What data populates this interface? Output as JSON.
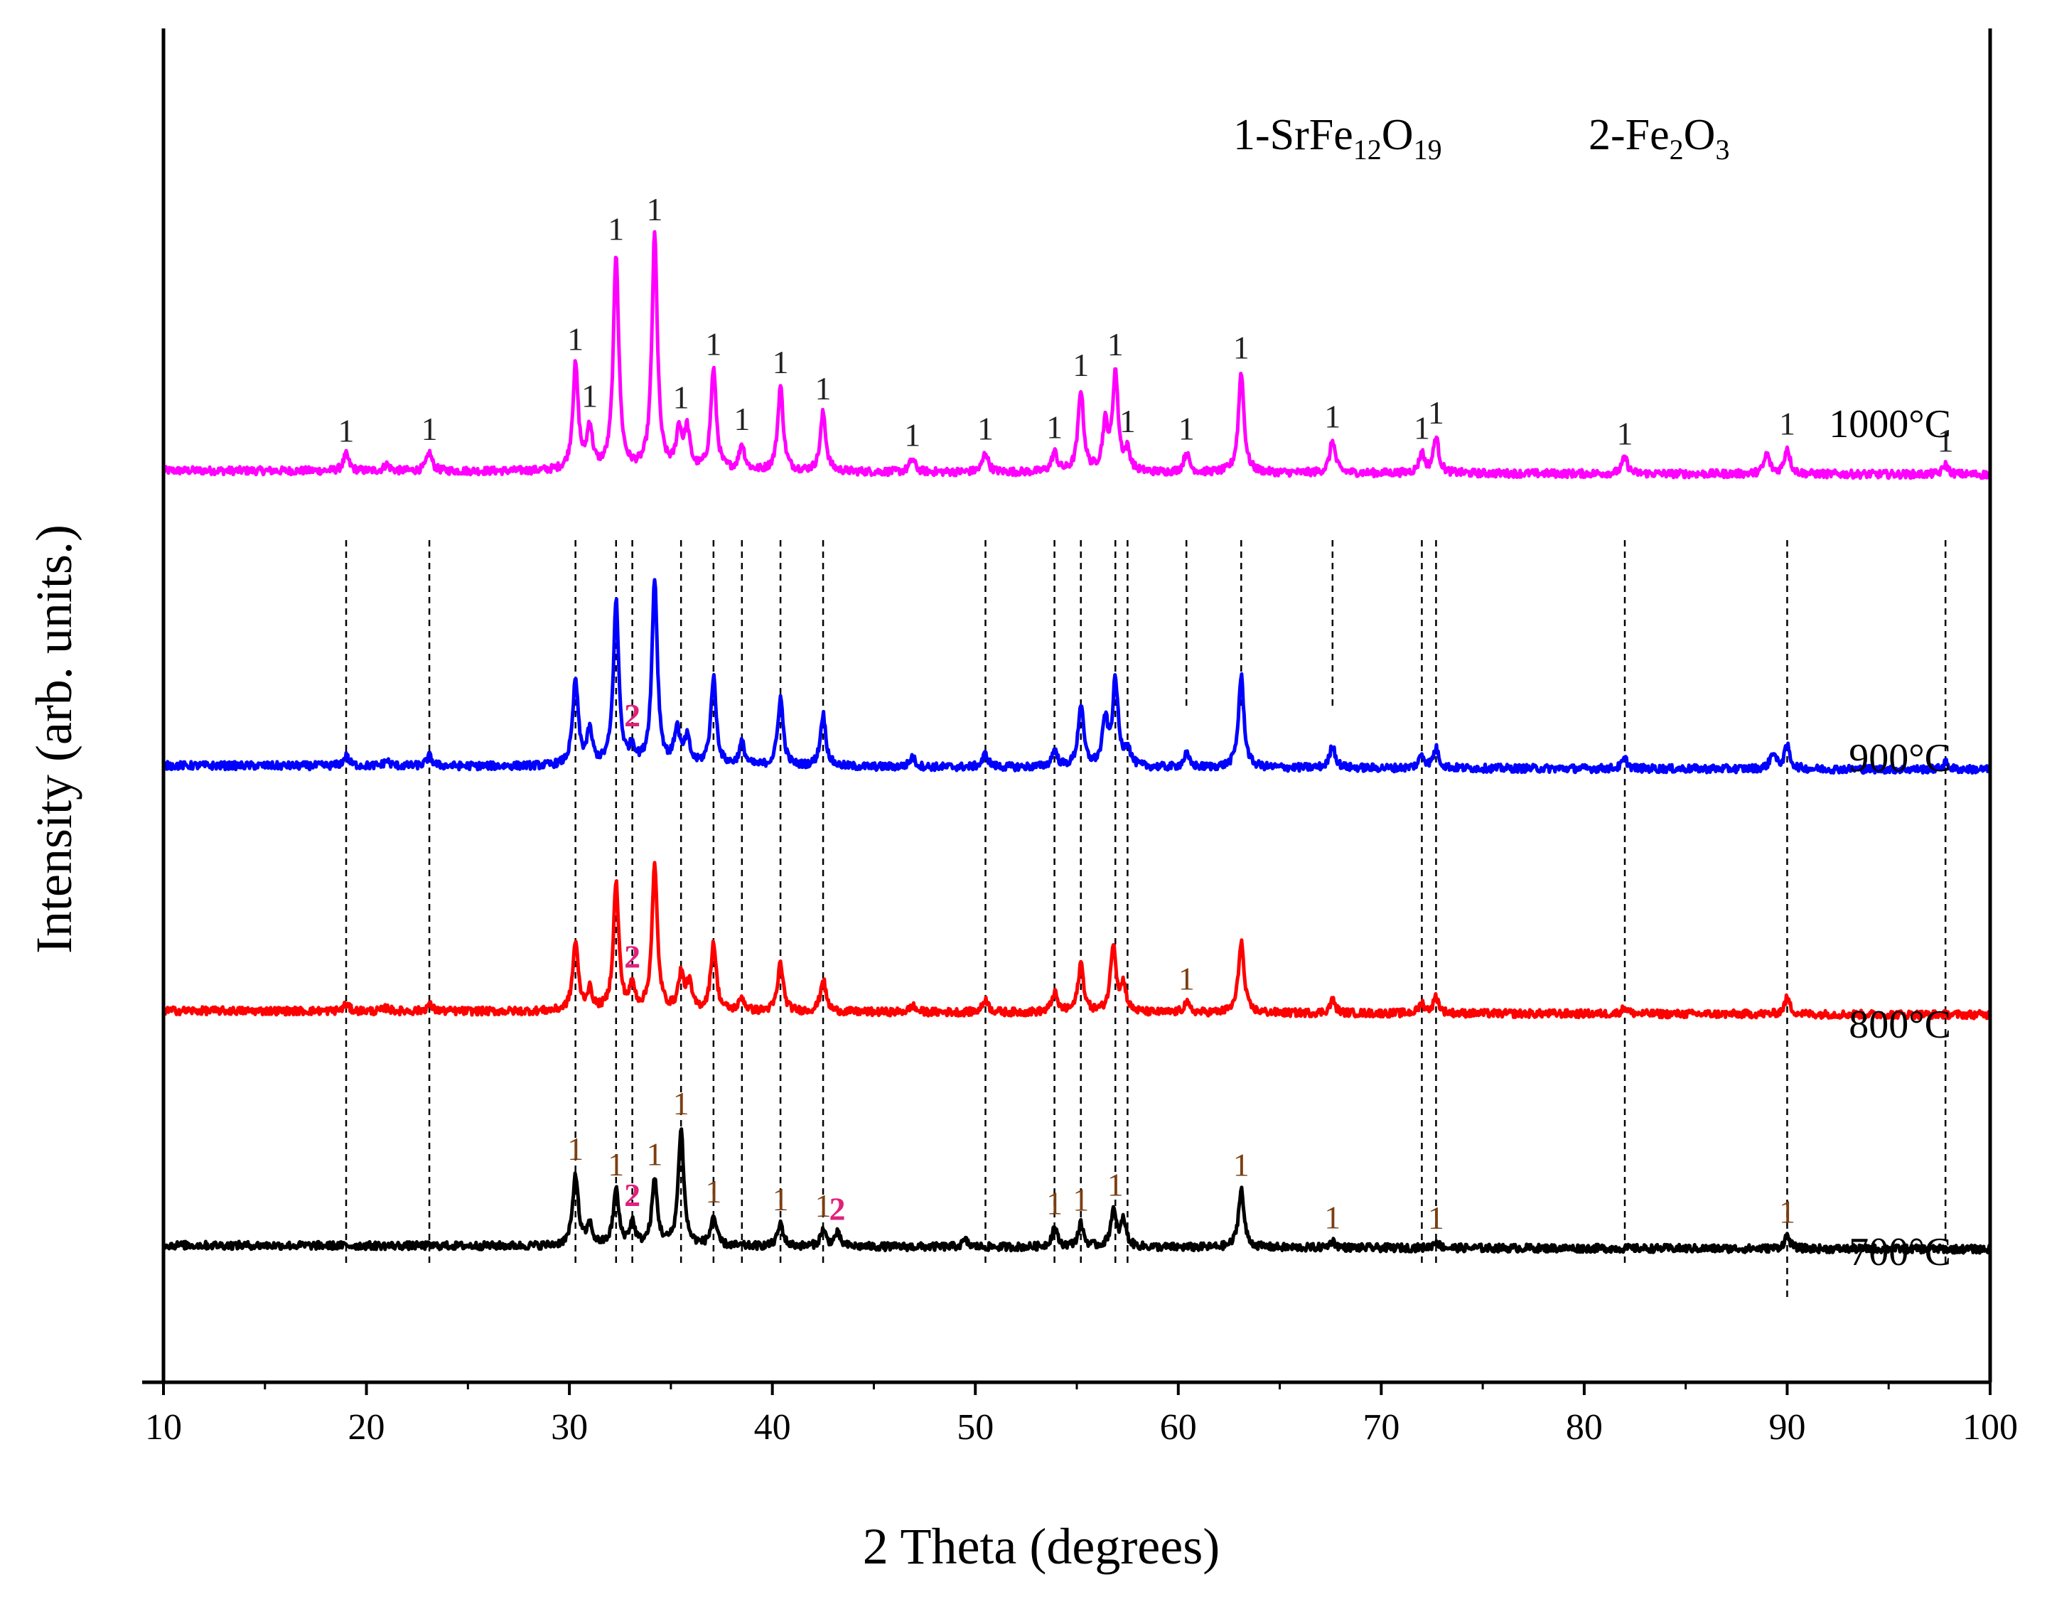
{
  "chart_data": {
    "type": "line",
    "title": "",
    "xlabel": "2 Theta (degrees)",
    "ylabel": "Intensity (arb. units.)",
    "xlim": [
      10,
      100
    ],
    "xticks": [
      10,
      20,
      30,
      40,
      50,
      60,
      70,
      80,
      90,
      100
    ],
    "yticks_shown": false,
    "legend": {
      "position": "top-right",
      "entries": [
        {
          "label": "1-SrFe",
          "sub1": "12",
          "mid": "O",
          "sub2": "19"
        },
        {
          "label": "2-Fe",
          "sub1": "2",
          "mid": "O",
          "sub2": "3"
        }
      ]
    },
    "series": [
      {
        "name": "1000°C",
        "color": "#ff00ff",
        "baseline": 0.9,
        "slope": -0.06,
        "noise": 0.06,
        "peaks": [
          [
            19.0,
            0.25
          ],
          [
            21,
            0.1
          ],
          [
            23.1,
            0.28
          ],
          [
            30.3,
            1.6
          ],
          [
            31.0,
            0.65
          ],
          [
            32.3,
            3.3
          ],
          [
            34.2,
            3.6
          ],
          [
            35.4,
            0.6
          ],
          [
            35.8,
            0.6
          ],
          [
            37.1,
            1.55
          ],
          [
            38.5,
            0.4
          ],
          [
            40.4,
            1.3
          ],
          [
            42.5,
            0.9
          ],
          [
            46.9,
            0.2
          ],
          [
            50.5,
            0.3
          ],
          [
            53.9,
            0.3
          ],
          [
            55.2,
            1.25
          ],
          [
            56.4,
            0.7
          ],
          [
            56.9,
            1.5
          ],
          [
            57.5,
            0.3
          ],
          [
            60.4,
            0.3
          ],
          [
            63.1,
            1.55
          ],
          [
            67.6,
            0.5
          ],
          [
            72.0,
            0.3
          ],
          [
            72.7,
            0.55
          ],
          [
            82.0,
            0.25
          ],
          [
            89.0,
            0.3
          ],
          [
            90.0,
            0.4
          ],
          [
            97.8,
            0.15
          ]
        ]
      },
      {
        "name": "900°C",
        "color": "#0000ff",
        "baseline": 0.9,
        "slope": -0.06,
        "noise": 0.06,
        "peaks": [
          [
            19.0,
            0.15
          ],
          [
            21,
            0.08
          ],
          [
            23.1,
            0.15
          ],
          [
            30.3,
            1.3
          ],
          [
            31.0,
            0.5
          ],
          [
            32.3,
            2.5
          ],
          [
            33.1,
            0.25
          ],
          [
            34.2,
            2.85
          ],
          [
            35.3,
            0.55
          ],
          [
            35.8,
            0.4
          ],
          [
            37.1,
            1.35
          ],
          [
            38.5,
            0.35
          ],
          [
            40.4,
            1.05
          ],
          [
            42.5,
            0.8
          ],
          [
            46.9,
            0.15
          ],
          [
            50.5,
            0.2
          ],
          [
            53.9,
            0.25
          ],
          [
            55.2,
            0.95
          ],
          [
            56.4,
            0.7
          ],
          [
            56.9,
            1.3
          ],
          [
            57.5,
            0.3
          ],
          [
            60.4,
            0.2
          ],
          [
            63.1,
            1.4
          ],
          [
            67.6,
            0.35
          ],
          [
            72.0,
            0.2
          ],
          [
            72.7,
            0.3
          ],
          [
            82.0,
            0.15
          ],
          [
            89.3,
            0.25
          ],
          [
            90.0,
            0.35
          ],
          [
            97.8,
            0.1
          ]
        ]
      },
      {
        "name": "800°C",
        "color": "#ff0000",
        "baseline": 0.9,
        "slope": -0.06,
        "noise": 0.06,
        "peaks": [
          [
            19.0,
            0.1
          ],
          [
            21,
            0.05
          ],
          [
            23.1,
            0.1
          ],
          [
            30.3,
            1.05
          ],
          [
            31.0,
            0.3
          ],
          [
            32.3,
            1.95
          ],
          [
            33.1,
            0.35
          ],
          [
            34.2,
            2.2
          ],
          [
            35.5,
            0.55
          ],
          [
            35.9,
            0.4
          ],
          [
            37.1,
            1.05
          ],
          [
            38.5,
            0.2
          ],
          [
            40.4,
            0.75
          ],
          [
            42.5,
            0.5
          ],
          [
            46.9,
            0.1
          ],
          [
            50.5,
            0.2
          ],
          [
            53.9,
            0.3
          ],
          [
            55.2,
            0.75
          ],
          [
            56.8,
            1.05
          ],
          [
            57.3,
            0.4
          ],
          [
            60.4,
            0.15
          ],
          [
            63.1,
            1.1
          ],
          [
            67.6,
            0.2
          ],
          [
            72.0,
            0.15
          ],
          [
            72.7,
            0.25
          ],
          [
            82.0,
            0.1
          ],
          [
            90.0,
            0.25
          ]
        ]
      },
      {
        "name": "700°C",
        "color": "#000000",
        "baseline": 0.9,
        "slope": -0.06,
        "noise": 0.06,
        "peaks": [
          [
            30.3,
            1.1
          ],
          [
            31.0,
            0.3
          ],
          [
            32.3,
            0.85
          ],
          [
            33.1,
            0.35
          ],
          [
            34.2,
            1.0
          ],
          [
            35.5,
            1.8
          ],
          [
            37.1,
            0.45
          ],
          [
            40.4,
            0.35
          ],
          [
            42.5,
            0.25
          ],
          [
            43.2,
            0.2
          ],
          [
            49.5,
            0.1
          ],
          [
            53.9,
            0.3
          ],
          [
            55.2,
            0.35
          ],
          [
            56.8,
            0.55
          ],
          [
            57.3,
            0.4
          ],
          [
            63.1,
            0.9
          ],
          [
            67.6,
            0.1
          ],
          [
            72.7,
            0.1
          ],
          [
            90.0,
            0.2
          ]
        ]
      }
    ],
    "peak_marks": [
      {
        "series": "1000°C",
        "marks": [
          [
            19.0,
            "1"
          ],
          [
            23.1,
            "1"
          ],
          [
            30.3,
            "1"
          ],
          [
            31.0,
            "1"
          ],
          [
            32.3,
            "1"
          ],
          [
            34.2,
            "1"
          ],
          [
            35.5,
            "1"
          ],
          [
            37.1,
            "1"
          ],
          [
            38.5,
            "1"
          ],
          [
            40.4,
            "1"
          ],
          [
            42.5,
            "1"
          ],
          [
            46.9,
            "1"
          ],
          [
            50.5,
            "1"
          ],
          [
            53.9,
            "1"
          ],
          [
            55.2,
            "1"
          ],
          [
            56.9,
            "1"
          ],
          [
            57.5,
            "1"
          ],
          [
            60.4,
            "1"
          ],
          [
            63.1,
            "1"
          ],
          [
            67.6,
            "1"
          ],
          [
            72.0,
            "1"
          ],
          [
            72.7,
            "1"
          ],
          [
            82.0,
            "1"
          ],
          [
            90.0,
            "1"
          ],
          [
            97.8,
            "1"
          ]
        ]
      },
      {
        "series": "900°C",
        "marks": [
          [
            33.1,
            "2"
          ]
        ]
      },
      {
        "series": "800°C",
        "marks": [
          [
            33.1,
            "2"
          ],
          [
            60.4,
            "1"
          ]
        ]
      },
      {
        "series": "700°C",
        "marks": [
          [
            30.3,
            "1"
          ],
          [
            32.3,
            "1"
          ],
          [
            33.1,
            "2"
          ],
          [
            34.2,
            "1"
          ],
          [
            35.5,
            "1"
          ],
          [
            37.1,
            "1"
          ],
          [
            40.4,
            "1"
          ],
          [
            42.5,
            "1"
          ],
          [
            43.2,
            "2"
          ],
          [
            53.9,
            "1"
          ],
          [
            55.2,
            "1"
          ],
          [
            56.9,
            "1"
          ],
          [
            63.1,
            "1"
          ],
          [
            67.6,
            "1"
          ],
          [
            72.7,
            "1"
          ],
          [
            90.0,
            "1"
          ]
        ]
      }
    ],
    "reference_lines": [
      19.0,
      23.1,
      30.3,
      32.3,
      33.1,
      35.5,
      37.1,
      38.5,
      40.4,
      42.5,
      50.5,
      53.9,
      55.2,
      56.9,
      57.5,
      60.4,
      63.1,
      67.6,
      72.0,
      72.7,
      82.0,
      90.0,
      97.8
    ],
    "colors": {
      "label1": "#1a7fa0",
      "label2": "#e0217a",
      "label1_alt": "#7a3f12"
    }
  }
}
